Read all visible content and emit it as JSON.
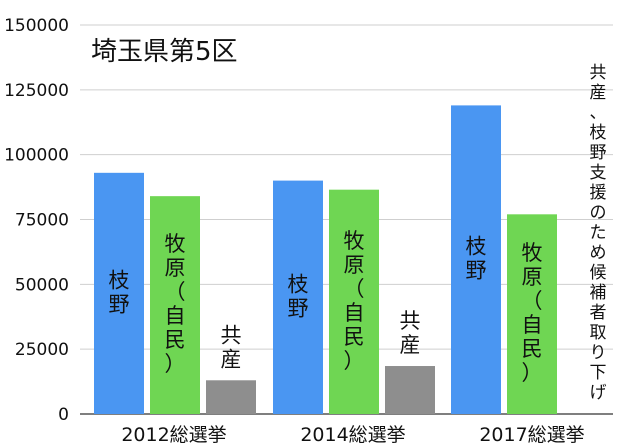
{
  "chart_data": {
    "type": "bar",
    "title": "埼玉県第5区",
    "categories": [
      "2012総選挙",
      "2014総選挙",
      "2017総選挙"
    ],
    "ylim": [
      0,
      150000
    ],
    "yticks": [
      0,
      25000,
      50000,
      75000,
      100000,
      125000,
      150000
    ],
    "grid": true,
    "bars": [
      {
        "category": "2012総選挙",
        "label": "枝野",
        "value": 93000,
        "color": "#4a96f2"
      },
      {
        "category": "2012総選挙",
        "label": "牧原（自民）",
        "value": 84000,
        "color": "#6fd653"
      },
      {
        "category": "2012総選挙",
        "label": "共産",
        "value": 13000,
        "color": "#8e8e8e"
      },
      {
        "category": "2014総選挙",
        "label": "枝野",
        "value": 90000,
        "color": "#4a96f2"
      },
      {
        "category": "2014総選挙",
        "label": "牧原（自民）",
        "value": 86500,
        "color": "#6fd653"
      },
      {
        "category": "2014総選挙",
        "label": "共産",
        "value": 18500,
        "color": "#8e8e8e"
      },
      {
        "category": "2017総選挙",
        "label": "枝野",
        "value": 119000,
        "color": "#4a96f2"
      },
      {
        "category": "2017総選挙",
        "label": "牧原（自民）",
        "value": 77000,
        "color": "#6fd653"
      }
    ],
    "annotation": "共産、枝野支援のため候補者取り下げ"
  }
}
